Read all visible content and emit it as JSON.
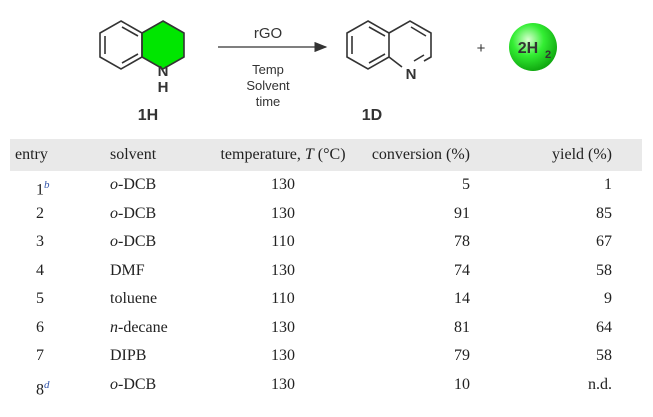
{
  "scheme": {
    "reactant": "1H",
    "reactant_nh": "N",
    "reactant_h": "H",
    "catalyst": "rGO",
    "conditions": [
      "Temp",
      "Solvent",
      "time"
    ],
    "product": "1D",
    "product_n": "N",
    "plus": "+",
    "byproduct": "2H",
    "byproduct_sub": "2",
    "highlight_color": "#00e600"
  },
  "table": {
    "headers": [
      "entry",
      "solvent",
      "temperature, ",
      "T",
      " (°C)",
      "conversion (%)",
      "yield (%)"
    ],
    "rows": [
      {
        "entry": "1",
        "note": "b",
        "solvent_prefix": "o",
        "solvent": "-DCB",
        "temperature": "130",
        "conversion": "5",
        "yield": "1"
      },
      {
        "entry": "2",
        "note": "",
        "solvent_prefix": "o",
        "solvent": "-DCB",
        "temperature": "130",
        "conversion": "91",
        "yield": "85"
      },
      {
        "entry": "3",
        "note": "",
        "solvent_prefix": "o",
        "solvent": "-DCB",
        "temperature": "110",
        "conversion": "78",
        "yield": "67"
      },
      {
        "entry": "4",
        "note": "",
        "solvent_prefix": "",
        "solvent": "DMF",
        "temperature": "130",
        "conversion": "74",
        "yield": "58"
      },
      {
        "entry": "5",
        "note": "",
        "solvent_prefix": "",
        "solvent": "toluene",
        "temperature": "110",
        "conversion": "14",
        "yield": "9"
      },
      {
        "entry": "6",
        "note": "",
        "solvent_prefix": "n",
        "solvent": "-decane",
        "temperature": "130",
        "conversion": "81",
        "yield": "64"
      },
      {
        "entry": "7",
        "note": "",
        "solvent_prefix": "",
        "solvent": "DIPB",
        "temperature": "130",
        "conversion": "79",
        "yield": "58"
      },
      {
        "entry": "8",
        "note": "d",
        "solvent_prefix": "o",
        "solvent": "-DCB",
        "temperature": "130",
        "conversion": "10",
        "yield": "n.d."
      }
    ]
  }
}
